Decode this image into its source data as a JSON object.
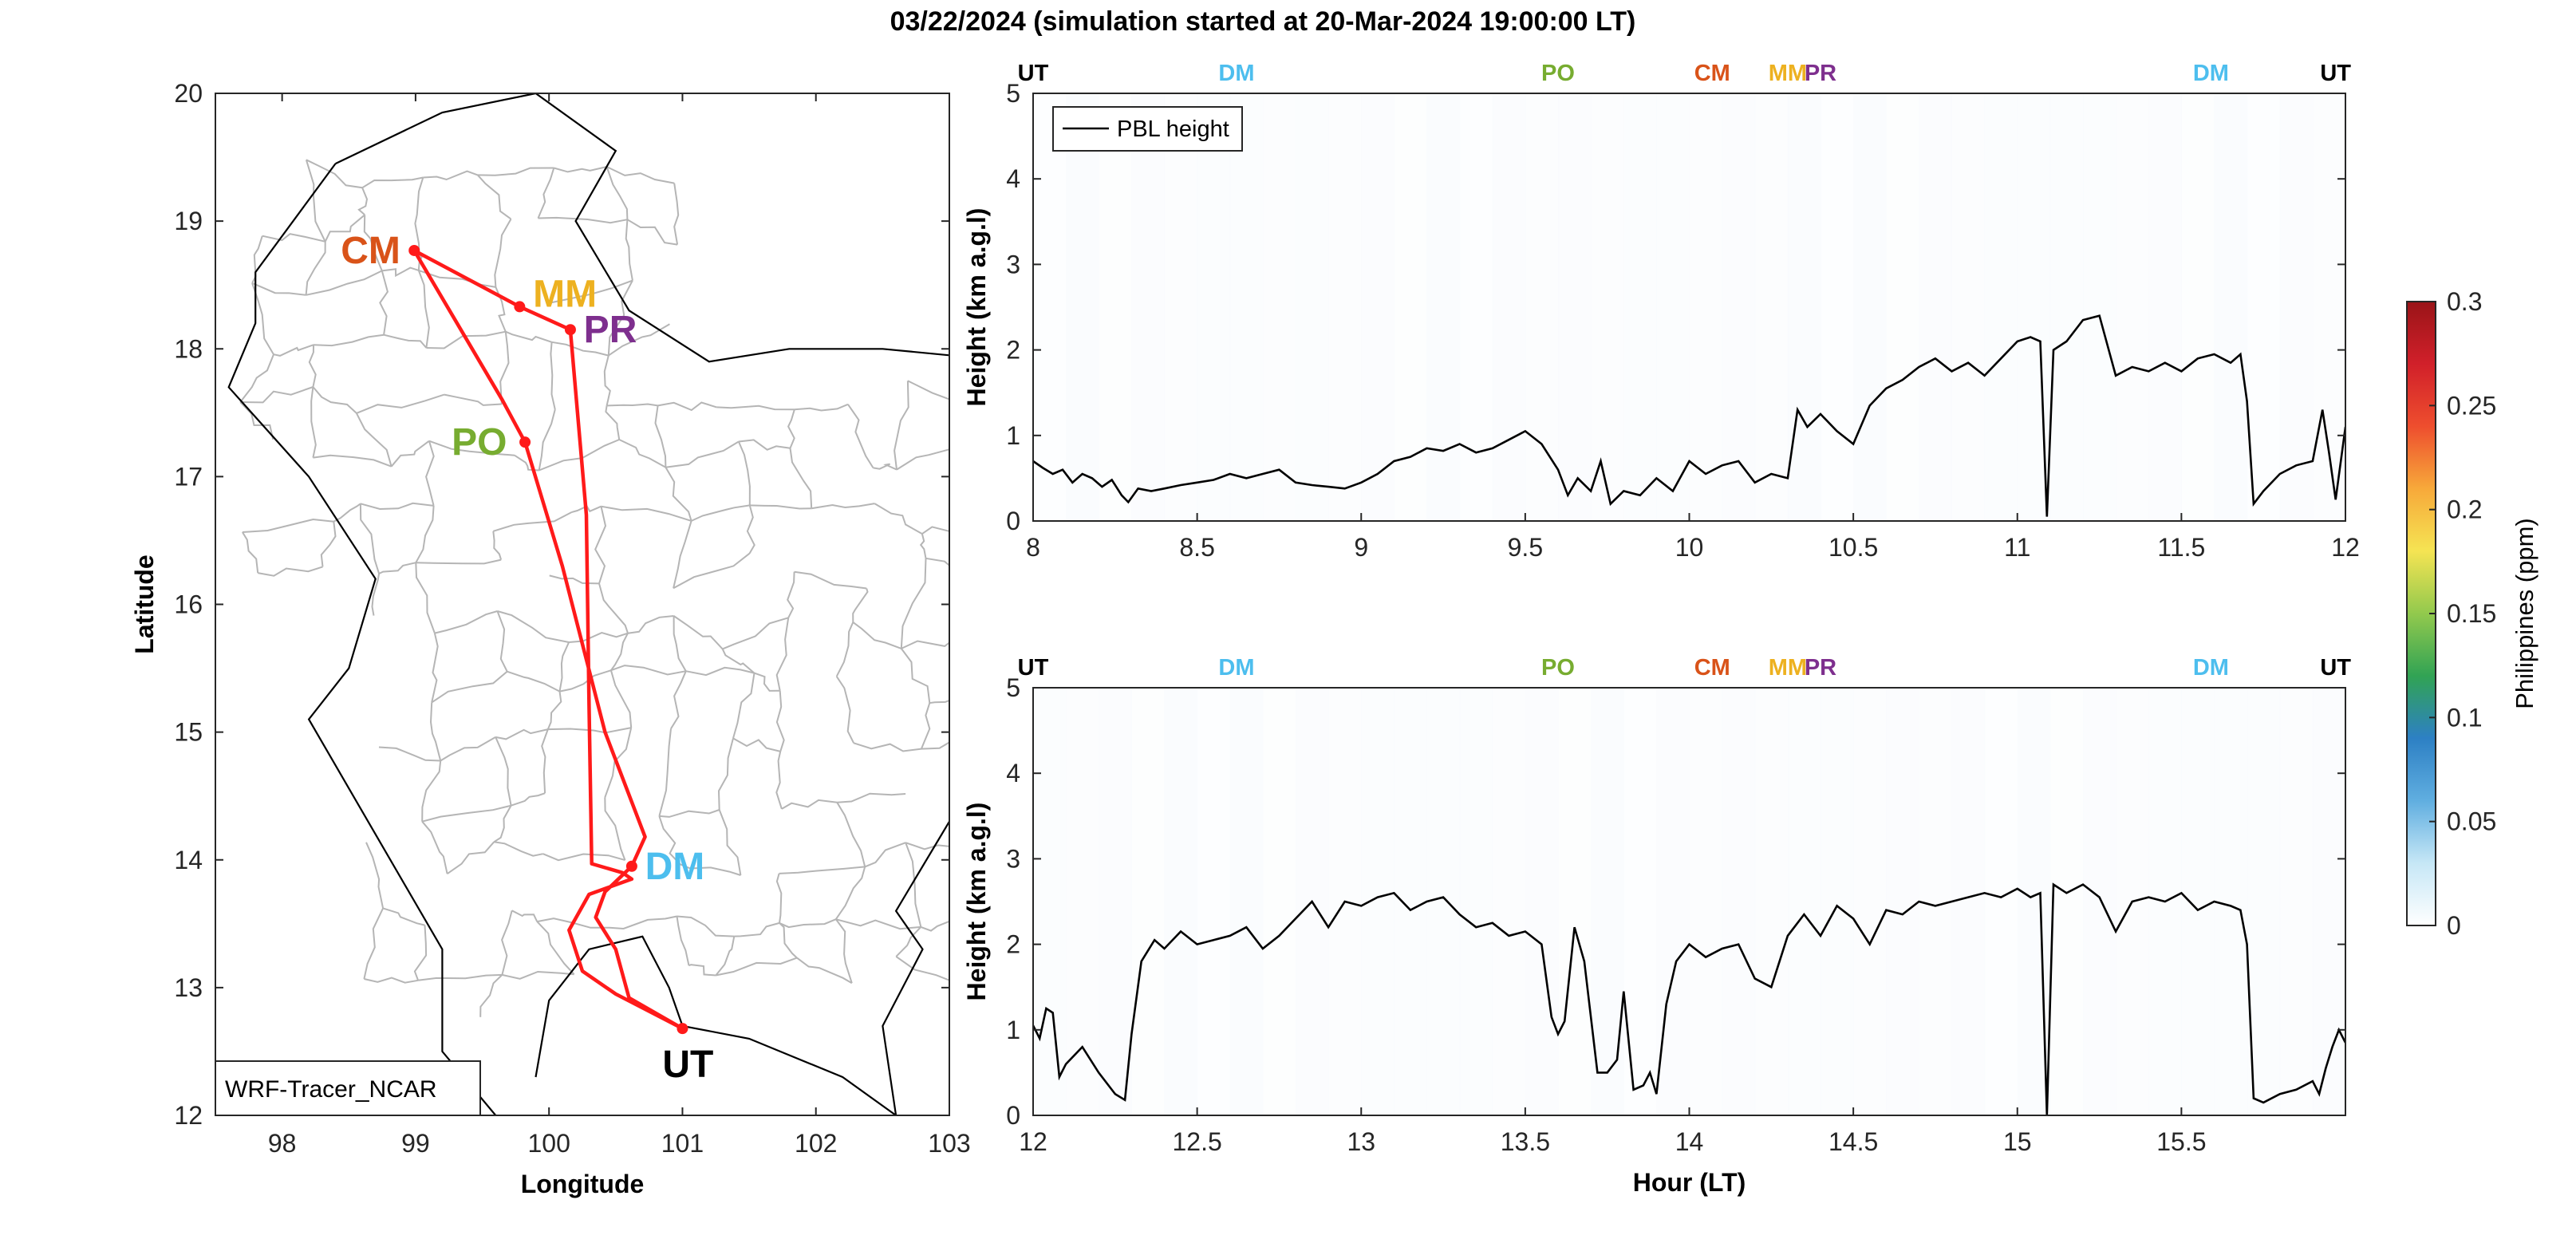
{
  "figure": {
    "title": "03/22/2024 (simulation started at 20-Mar-2024 19:00:00 LT)"
  },
  "chart_data": [
    {
      "id": "map",
      "type": "scatter",
      "xlabel": "Longitude",
      "ylabel": "Latitude",
      "xlim": [
        97.5,
        103
      ],
      "ylim": [
        12,
        20
      ],
      "xticks": [
        98,
        99,
        100,
        101,
        102,
        103
      ],
      "yticks": [
        12,
        13,
        14,
        15,
        16,
        17,
        18,
        19,
        20
      ],
      "label_box": "WRF-Tracer_NCAR",
      "route_color": "#ff1a1a",
      "route": [
        {
          "x": 101.0,
          "y": 12.68
        },
        {
          "x": 100.6,
          "y": 12.92
        },
        {
          "x": 100.5,
          "y": 13.3
        },
        {
          "x": 100.35,
          "y": 13.55
        },
        {
          "x": 100.42,
          "y": 13.75
        },
        {
          "x": 100.62,
          "y": 13.95
        },
        {
          "x": 100.72,
          "y": 14.18
        },
        {
          "x": 100.42,
          "y": 15.0
        },
        {
          "x": 100.1,
          "y": 16.3
        },
        {
          "x": 99.82,
          "y": 17.27
        },
        {
          "x": 99.65,
          "y": 17.6
        },
        {
          "x": 98.99,
          "y": 18.77
        },
        {
          "x": 99.78,
          "y": 18.33
        },
        {
          "x": 100.16,
          "y": 18.15
        },
        {
          "x": 100.28,
          "y": 16.7
        },
        {
          "x": 100.3,
          "y": 15.2
        },
        {
          "x": 100.32,
          "y": 13.97
        },
        {
          "x": 100.55,
          "y": 13.9
        },
        {
          "x": 100.62,
          "y": 13.85
        },
        {
          "x": 100.3,
          "y": 13.73
        },
        {
          "x": 100.15,
          "y": 13.45
        },
        {
          "x": 100.25,
          "y": 13.13
        },
        {
          "x": 100.5,
          "y": 12.95
        },
        {
          "x": 101.0,
          "y": 12.68
        }
      ],
      "stations": [
        {
          "code": "CM",
          "lon": 98.99,
          "lat": 18.77,
          "color": "#d95319",
          "dx": -0.55,
          "dy": 0.0
        },
        {
          "code": "MM",
          "lon": 99.78,
          "lat": 18.33,
          "color": "#edb120",
          "dx": 0.1,
          "dy": 0.1
        },
        {
          "code": "PR",
          "lon": 100.16,
          "lat": 18.15,
          "color": "#7e2f8e",
          "dx": 0.1,
          "dy": 0.0
        },
        {
          "code": "PO",
          "lon": 99.82,
          "lat": 17.27,
          "color": "#77ac30",
          "dx": -0.55,
          "dy": 0.0
        },
        {
          "code": "DM",
          "lon": 100.62,
          "lat": 13.95,
          "color": "#4dbeee",
          "dx": 0.1,
          "dy": 0.0
        },
        {
          "code": "UT",
          "lon": 101.0,
          "lat": 12.68,
          "color": "#000000",
          "dx": -0.15,
          "dy": -0.28
        }
      ]
    },
    {
      "id": "pbl-top",
      "type": "line",
      "ylabel": "Height (km a.g.l)",
      "xlim": [
        8,
        12
      ],
      "ylim": [
        0,
        5
      ],
      "xticks": [
        8,
        8.5,
        9,
        9.5,
        10,
        10.5,
        11,
        11.5,
        12
      ],
      "xticklabels": [
        "8",
        "8.5",
        "9",
        "9.5",
        "10",
        "10.5",
        "11",
        "11.5",
        "12"
      ],
      "yticks": [
        0,
        1,
        2,
        3,
        4,
        5
      ],
      "legend": "PBL height",
      "top_markers": [
        {
          "label": "UT",
          "x": 8.0,
          "color": "#000000"
        },
        {
          "label": "DM",
          "x": 8.62,
          "color": "#4dbeee"
        },
        {
          "label": "PO",
          "x": 9.6,
          "color": "#77ac30"
        },
        {
          "label": "CM",
          "x": 10.07,
          "color": "#d95319"
        },
        {
          "label": "MM",
          "x": 10.3,
          "color": "#edb120"
        },
        {
          "label": "PR",
          "x": 10.4,
          "color": "#7e2f8e"
        },
        {
          "label": "DM",
          "x": 11.59,
          "color": "#4dbeee"
        },
        {
          "label": "UT",
          "x": 11.97,
          "color": "#000000"
        }
      ],
      "series": [
        {
          "color": "#000000",
          "x": [
            8.0,
            8.03,
            8.06,
            8.09,
            8.12,
            8.15,
            8.18,
            8.21,
            8.24,
            8.27,
            8.29,
            8.32,
            8.36,
            8.4,
            8.45,
            8.5,
            8.55,
            8.6,
            8.65,
            8.7,
            8.75,
            8.8,
            8.85,
            8.9,
            8.95,
            9.0,
            9.05,
            9.1,
            9.15,
            9.2,
            9.25,
            9.3,
            9.35,
            9.4,
            9.45,
            9.5,
            9.55,
            9.6,
            9.63,
            9.66,
            9.7,
            9.73,
            9.76,
            9.8,
            9.85,
            9.9,
            9.95,
            10.0,
            10.05,
            10.1,
            10.15,
            10.2,
            10.25,
            10.3,
            10.33,
            10.36,
            10.4,
            10.45,
            10.5,
            10.55,
            10.6,
            10.65,
            10.7,
            10.75,
            10.8,
            10.85,
            10.9,
            10.95,
            11.0,
            11.04,
            11.07,
            11.09,
            11.11,
            11.15,
            11.2,
            11.25,
            11.3,
            11.35,
            11.4,
            11.45,
            11.5,
            11.55,
            11.6,
            11.65,
            11.68,
            11.7,
            11.72,
            11.75,
            11.8,
            11.85,
            11.9,
            11.93,
            11.95,
            11.97,
            12.0
          ],
          "y": [
            0.7,
            0.62,
            0.55,
            0.6,
            0.45,
            0.55,
            0.5,
            0.4,
            0.48,
            0.3,
            0.22,
            0.38,
            0.35,
            0.38,
            0.42,
            0.45,
            0.48,
            0.55,
            0.5,
            0.55,
            0.6,
            0.45,
            0.42,
            0.4,
            0.38,
            0.45,
            0.55,
            0.7,
            0.75,
            0.85,
            0.82,
            0.9,
            0.8,
            0.85,
            0.95,
            1.05,
            0.9,
            0.6,
            0.3,
            0.5,
            0.35,
            0.7,
            0.2,
            0.35,
            0.3,
            0.5,
            0.35,
            0.7,
            0.55,
            0.65,
            0.7,
            0.45,
            0.55,
            0.5,
            1.3,
            1.1,
            1.25,
            1.05,
            0.9,
            1.35,
            1.55,
            1.65,
            1.8,
            1.9,
            1.75,
            1.85,
            1.7,
            1.9,
            2.1,
            2.15,
            2.1,
            0.05,
            2.0,
            2.1,
            2.35,
            2.4,
            1.7,
            1.8,
            1.75,
            1.85,
            1.75,
            1.9,
            1.95,
            1.85,
            1.95,
            1.4,
            0.2,
            0.35,
            0.55,
            0.65,
            0.7,
            1.3,
            0.8,
            0.25,
            1.1
          ]
        }
      ]
    },
    {
      "id": "pbl-bottom",
      "type": "line",
      "xlabel": "Hour (LT)",
      "ylabel": "Height (km a.g.l)",
      "xlim": [
        12,
        16
      ],
      "ylim": [
        0,
        5
      ],
      "xticks": [
        12,
        12.5,
        13,
        13.5,
        14,
        14.5,
        15,
        15.5
      ],
      "xticklabels": [
        "12",
        "12.5",
        "13",
        "13.5",
        "14",
        "14.5",
        "15",
        "15.5"
      ],
      "yticks": [
        0,
        1,
        2,
        3,
        4,
        5
      ],
      "top_markers": [
        {
          "label": "UT",
          "x": 12.0,
          "color": "#000000"
        },
        {
          "label": "DM",
          "x": 12.62,
          "color": "#4dbeee"
        },
        {
          "label": "PO",
          "x": 13.6,
          "color": "#77ac30"
        },
        {
          "label": "CM",
          "x": 14.07,
          "color": "#d95319"
        },
        {
          "label": "MM",
          "x": 14.3,
          "color": "#edb120"
        },
        {
          "label": "PR",
          "x": 14.4,
          "color": "#7e2f8e"
        },
        {
          "label": "DM",
          "x": 15.59,
          "color": "#4dbeee"
        },
        {
          "label": "UT",
          "x": 15.97,
          "color": "#000000"
        }
      ],
      "series": [
        {
          "color": "#000000",
          "x": [
            12.0,
            12.02,
            12.04,
            12.06,
            12.08,
            12.1,
            12.15,
            12.2,
            12.25,
            12.28,
            12.3,
            12.33,
            12.37,
            12.4,
            12.45,
            12.5,
            12.55,
            12.6,
            12.65,
            12.7,
            12.75,
            12.8,
            12.85,
            12.9,
            12.95,
            13.0,
            13.05,
            13.1,
            13.15,
            13.2,
            13.25,
            13.3,
            13.35,
            13.4,
            13.45,
            13.5,
            13.55,
            13.58,
            13.6,
            13.62,
            13.65,
            13.68,
            13.72,
            13.75,
            13.78,
            13.8,
            13.83,
            13.86,
            13.88,
            13.9,
            13.93,
            13.96,
            14.0,
            14.05,
            14.1,
            14.15,
            14.2,
            14.25,
            14.3,
            14.35,
            14.4,
            14.45,
            14.5,
            14.55,
            14.6,
            14.65,
            14.7,
            14.75,
            14.8,
            14.85,
            14.9,
            14.95,
            15.0,
            15.04,
            15.07,
            15.09,
            15.11,
            15.15,
            15.2,
            15.25,
            15.3,
            15.35,
            15.4,
            15.45,
            15.5,
            15.55,
            15.6,
            15.65,
            15.68,
            15.7,
            15.72,
            15.75,
            15.8,
            15.85,
            15.9,
            15.92,
            15.94,
            15.96,
            15.98,
            16.0
          ],
          "y": [
            1.05,
            0.9,
            1.25,
            1.2,
            0.45,
            0.6,
            0.8,
            0.5,
            0.25,
            0.18,
            0.95,
            1.8,
            2.05,
            1.95,
            2.15,
            2.0,
            2.05,
            2.1,
            2.2,
            1.95,
            2.1,
            2.3,
            2.5,
            2.2,
            2.5,
            2.45,
            2.55,
            2.6,
            2.4,
            2.5,
            2.55,
            2.35,
            2.2,
            2.25,
            2.1,
            2.15,
            2.0,
            1.15,
            0.95,
            1.1,
            2.2,
            1.8,
            0.5,
            0.5,
            0.65,
            1.45,
            0.3,
            0.35,
            0.5,
            0.25,
            1.3,
            1.8,
            2.0,
            1.85,
            1.95,
            2.0,
            1.6,
            1.5,
            2.1,
            2.35,
            2.1,
            2.45,
            2.3,
            2.0,
            2.4,
            2.35,
            2.5,
            2.45,
            2.5,
            2.55,
            2.6,
            2.55,
            2.65,
            2.55,
            2.6,
            0.0,
            2.7,
            2.6,
            2.7,
            2.55,
            2.15,
            2.5,
            2.55,
            2.5,
            2.6,
            2.4,
            2.5,
            2.45,
            2.4,
            2.0,
            0.2,
            0.15,
            0.25,
            0.3,
            0.4,
            0.25,
            0.55,
            0.8,
            1.0,
            0.85
          ]
        }
      ]
    },
    {
      "id": "colorbar",
      "type": "heatmap",
      "label": "Philippines (ppm)",
      "range": [
        0,
        0.3
      ],
      "ticks": [
        0,
        0.05,
        0.1,
        0.15,
        0.2,
        0.25,
        0.3
      ],
      "ticklabels": [
        "0",
        "0.05",
        "0.1",
        "0.15",
        "0.2",
        "0.25",
        "0.3"
      ],
      "colors": [
        "#ffffff",
        "#c6e7f6",
        "#60aee0",
        "#2d80c4",
        "#31a354",
        "#92c94d",
        "#f5e453",
        "#f7a93a",
        "#ee4e2e",
        "#d1202a",
        "#9a1418"
      ]
    }
  ]
}
